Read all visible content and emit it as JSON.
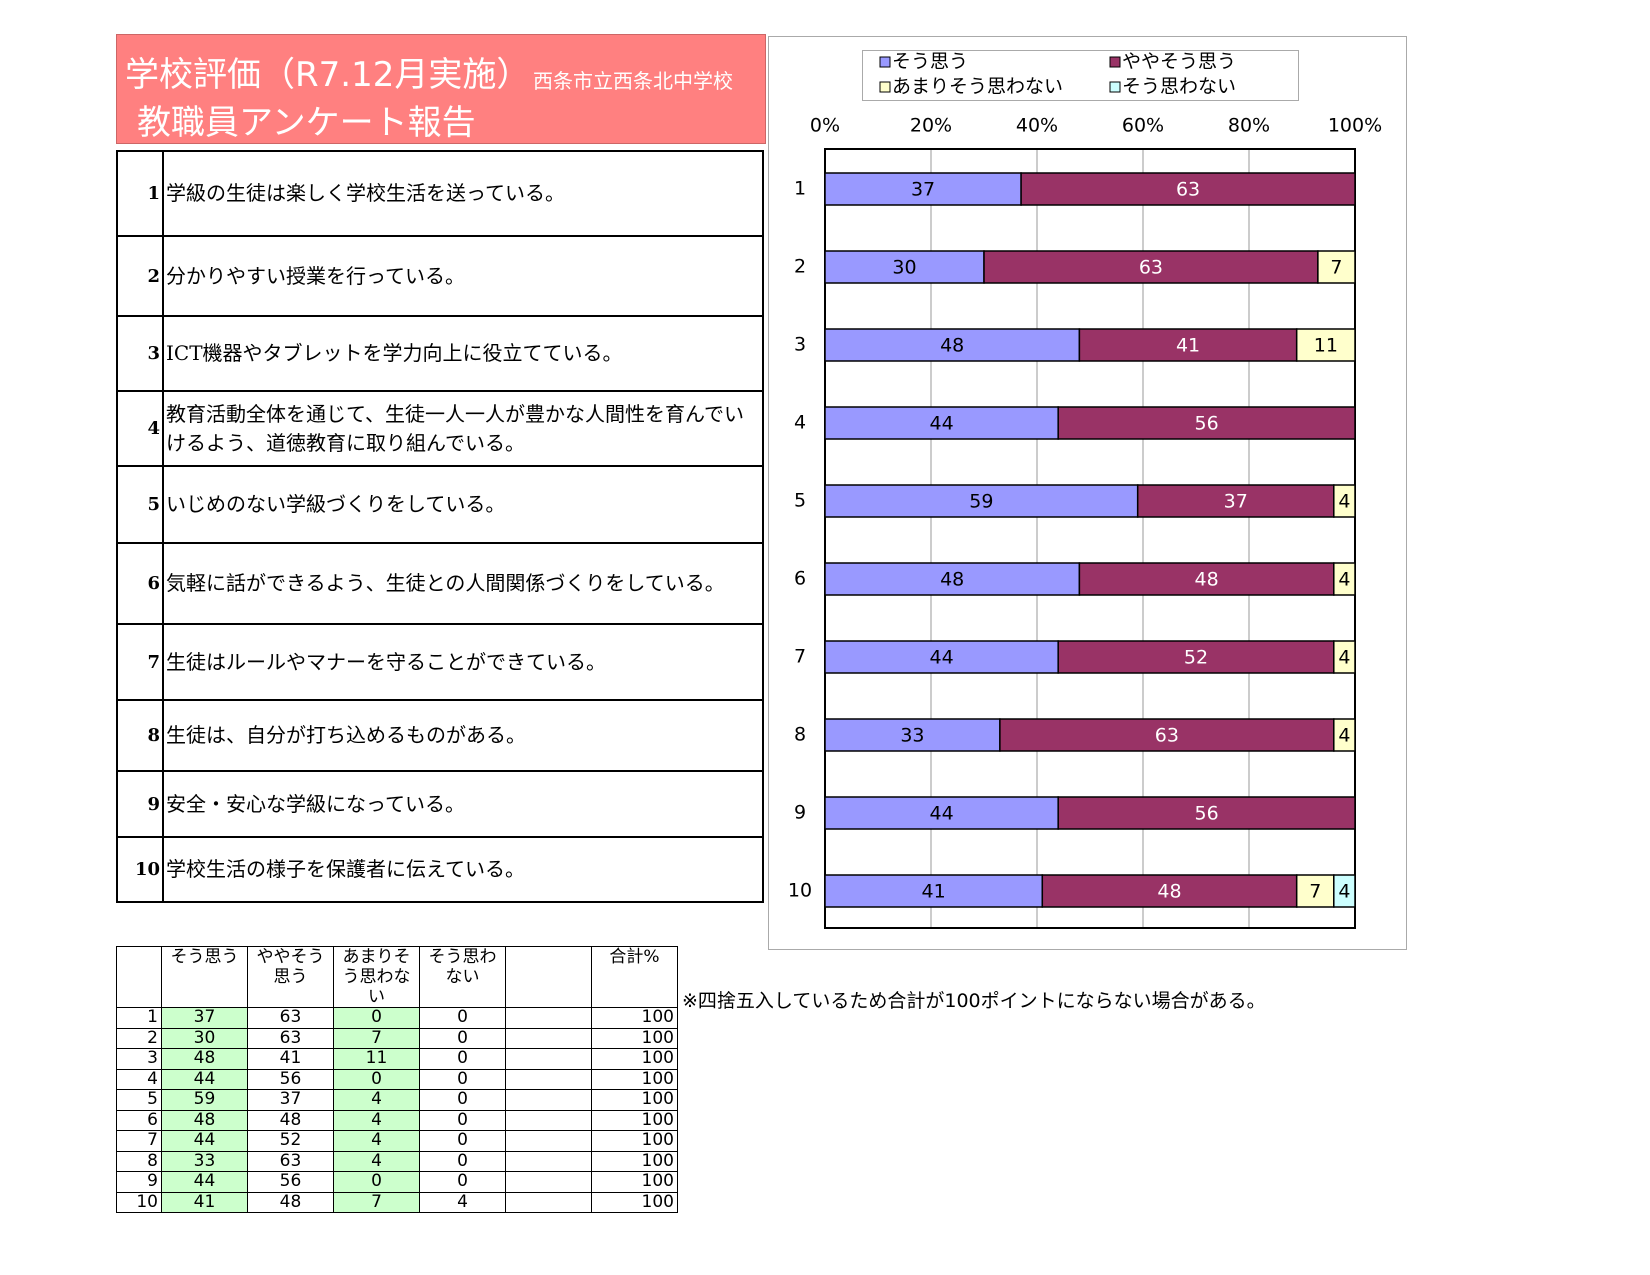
{
  "header": {
    "title": "学校評価（R7.12月実施）",
    "school": "西条市立西条北中学校",
    "subtitle": "教職員アンケート報告"
  },
  "questions": [
    {
      "number": "1",
      "text": "学級の生徒は楽しく学校生活を送っている。"
    },
    {
      "number": "2",
      "text": "分かりやすい授業を行っている。"
    },
    {
      "number": "3",
      "text": "ICT機器やタブレットを学力向上に役立てている。"
    },
    {
      "number": "4",
      "text": "教育活動全体を通じて、生徒一人一人が豊かな人間性を育んでいけるよう、道徳教育に取り組んでいる。"
    },
    {
      "number": "5",
      "text": "いじめのない学級づくりをしている。"
    },
    {
      "number": "6",
      "text": "気軽に話ができるよう、生徒との人間関係づくりをしている。"
    },
    {
      "number": "7",
      "text": "生徒はルールやマナーを守ることができている。"
    },
    {
      "number": "8",
      "text": "生徒は、自分が打ち込めるものがある。"
    },
    {
      "number": "9",
      "text": "安全・安心な学級になっている。"
    },
    {
      "number": "10",
      "text": "学校生活の様子を保護者に伝えている。"
    }
  ],
  "chart_data": {
    "type": "bar",
    "orientation": "horizontal",
    "stacked": true,
    "grid": true,
    "categories": [
      "1",
      "2",
      "3",
      "4",
      "5",
      "6",
      "7",
      "8",
      "9",
      "10"
    ],
    "xlim": [
      0,
      100
    ],
    "xticks": [
      {
        "value": 0,
        "label": "0%"
      },
      {
        "value": 20,
        "label": "20%"
      },
      {
        "value": 40,
        "label": "40%"
      },
      {
        "value": 60,
        "label": "60%"
      },
      {
        "value": 80,
        "label": "80%"
      },
      {
        "value": 100,
        "label": "100%"
      }
    ],
    "series": [
      {
        "name": "そう思う",
        "color": "#9999ff",
        "values": [
          37,
          30,
          48,
          44,
          59,
          48,
          44,
          33,
          44,
          41
        ]
      },
      {
        "name": "ややそう思う",
        "color": "#993366",
        "values": [
          63,
          63,
          41,
          56,
          37,
          48,
          52,
          63,
          56,
          48
        ]
      },
      {
        "name": "あまりそう思わない",
        "color": "#ffffcc",
        "values": [
          0,
          7,
          11,
          0,
          4,
          4,
          4,
          4,
          0,
          7
        ]
      },
      {
        "name": "そう思わない",
        "color": "#ccffff",
        "values": [
          0,
          0,
          0,
          0,
          0,
          0,
          0,
          0,
          0,
          4
        ]
      }
    ]
  },
  "table": {
    "columns": [
      "そう思う",
      "ややそう思う",
      "あまりそう思わない",
      "そう思わない",
      "合計%"
    ],
    "rows": [
      [
        "1",
        37,
        63,
        0,
        0,
        100
      ],
      [
        "2",
        30,
        63,
        7,
        0,
        100
      ],
      [
        "3",
        48,
        41,
        11,
        0,
        100
      ],
      [
        "4",
        44,
        56,
        0,
        0,
        100
      ],
      [
        "5",
        59,
        37,
        4,
        0,
        100
      ],
      [
        "6",
        48,
        48,
        4,
        0,
        100
      ],
      [
        "7",
        44,
        52,
        4,
        0,
        100
      ],
      [
        "8",
        33,
        63,
        4,
        0,
        100
      ],
      [
        "9",
        44,
        56,
        0,
        0,
        100
      ],
      [
        "10",
        41,
        48,
        7,
        4,
        100
      ]
    ]
  },
  "note": "※四捨五入しているため合計が100ポイントにならない場合がある。"
}
